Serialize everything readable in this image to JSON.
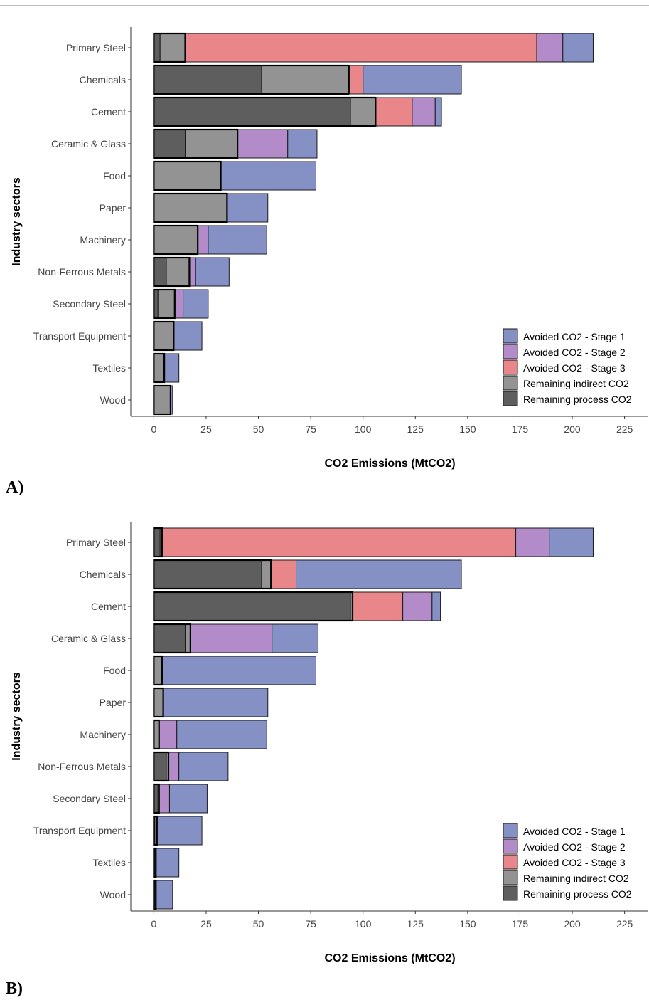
{
  "chart_data": [
    {
      "type": "bar",
      "orientation": "horizontal",
      "stacked": true,
      "panel_label": "A)",
      "xlabel": "CO2 Emissions (MtCO2)",
      "ylabel": "Industry sectors",
      "xlim": [
        -11,
        236
      ],
      "xticks": [
        0,
        25,
        50,
        75,
        100,
        125,
        150,
        175,
        200,
        225
      ],
      "grid": false,
      "legend_position": "bottom-right",
      "categories": [
        "Primary Steel",
        "Chemicals",
        "Cement",
        "Ceramic & Glass",
        "Food",
        "Paper",
        "Machinery",
        "Non-Ferrous Metals",
        "Secondary Steel",
        "Transport Equipment",
        "Textiles",
        "Wood"
      ],
      "series": [
        {
          "name": "Remaining process CO2",
          "color": "#5e5e5e",
          "values": [
            3,
            51.5,
            94,
            15,
            0,
            0,
            0,
            6,
            2,
            0,
            0,
            0
          ]
        },
        {
          "name": "Remaining indirect CO2",
          "color": "#939393",
          "values": [
            12,
            42,
            12,
            25,
            32,
            35,
            21,
            11,
            8,
            9.5,
            5,
            8
          ]
        },
        {
          "name": "Avoided CO2 - Stage 3",
          "color": "#e8868a",
          "values": [
            168,
            6.5,
            17.5,
            0,
            0,
            0,
            0,
            0,
            0,
            0,
            0,
            0
          ]
        },
        {
          "name": "Avoided CO2 - Stage 2",
          "color": "#b28bc8",
          "values": [
            12.5,
            0,
            11,
            24,
            0,
            0,
            5,
            3,
            4,
            0,
            0,
            0
          ]
        },
        {
          "name": "Avoided CO2 - Stage 1",
          "color": "#8590c4",
          "values": [
            14.5,
            47,
            3,
            14,
            45.5,
            19.5,
            28,
            16,
            12,
            13.5,
            7,
            1
          ]
        }
      ],
      "highlight_boundary": [
        15,
        93,
        106,
        40,
        32,
        35,
        21,
        17,
        10,
        9.5,
        5,
        8
      ]
    },
    {
      "type": "bar",
      "orientation": "horizontal",
      "stacked": true,
      "panel_label": "B)",
      "xlabel": "CO2 Emissions (MtCO2)",
      "ylabel": "Industry sectors",
      "xlim": [
        -11,
        236
      ],
      "xticks": [
        0,
        25,
        50,
        75,
        100,
        125,
        150,
        175,
        200,
        225
      ],
      "grid": false,
      "legend_position": "bottom-right",
      "categories": [
        "Primary Steel",
        "Chemicals",
        "Cement",
        "Ceramic & Glass",
        "Food",
        "Paper",
        "Machinery",
        "Non-Ferrous Metals",
        "Secondary Steel",
        "Transport Equipment",
        "Textiles",
        "Wood"
      ],
      "series": [
        {
          "name": "Remaining process CO2",
          "color": "#5e5e5e",
          "values": [
            3,
            51.5,
            94,
            15,
            0,
            0,
            0,
            6,
            2,
            0.5,
            0.5,
            0.5
          ]
        },
        {
          "name": "Remaining indirect CO2",
          "color": "#939393",
          "values": [
            1,
            4.5,
            1,
            2.5,
            4,
            4.5,
            2.5,
            1,
            0.5,
            1,
            0.5,
            0.5
          ]
        },
        {
          "name": "Avoided CO2 - Stage 3",
          "color": "#e8868a",
          "values": [
            169,
            12,
            24,
            0,
            0,
            0,
            0,
            0,
            0,
            0,
            0,
            0
          ]
        },
        {
          "name": "Avoided CO2 - Stage 2",
          "color": "#b28bc8",
          "values": [
            16,
            0,
            14,
            39,
            0,
            0,
            8.5,
            5,
            5,
            0,
            0,
            0
          ]
        },
        {
          "name": "Avoided CO2 - Stage 1",
          "color": "#8590c4",
          "values": [
            21,
            79,
            4,
            22,
            73.5,
            50,
            43,
            23.5,
            18,
            21.5,
            11,
            8
          ]
        }
      ],
      "highlight_boundary": [
        4,
        56,
        95,
        17.5,
        4,
        4.5,
        2.5,
        7,
        2.5,
        1.5,
        1,
        1
      ]
    }
  ]
}
